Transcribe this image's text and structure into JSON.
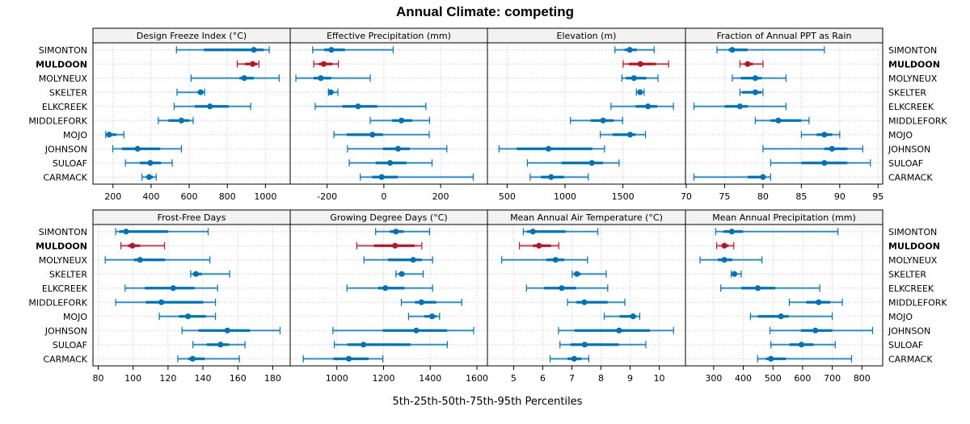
{
  "chart_data": {
    "type": "dot-interval",
    "title": "Annual Climate: competing",
    "xlabel": "5th-25th-50th-75th-95th Percentiles",
    "ylabel": "",
    "grid": true,
    "highlight_site": "MULDOON",
    "colors": {
      "default": "#0072B2",
      "highlight": "#B2182B",
      "grid": "#c8c8c8",
      "strip": "#f2f2f2"
    },
    "sites": [
      "SIMONTON",
      "MULDOON",
      "MOLYNEUX",
      "SKELTER",
      "ELKCREEK",
      "MIDDLEFORK",
      "MOJO",
      "JOHNSON",
      "SULOAF",
      "CARMACK"
    ],
    "percentile_keys": [
      "p5",
      "p25",
      "p50",
      "p75",
      "p95"
    ],
    "panels": [
      {
        "name": "Design Freeze Index (°C)",
        "xlim": [
          95,
          1130
        ],
        "ticks": [
          200,
          400,
          600,
          800,
          1000
        ],
        "values": [
          [
            533,
            677,
            939,
            991,
            1020
          ],
          [
            852,
            892,
            933,
            956,
            966
          ],
          [
            610,
            864,
            889,
            939,
            1072
          ],
          [
            536,
            644,
            660,
            672,
            681
          ],
          [
            521,
            630,
            709,
            807,
            923
          ],
          [
            438,
            491,
            559,
            601,
            621
          ],
          [
            162,
            173,
            180,
            218,
            257
          ],
          [
            199,
            247,
            329,
            448,
            559
          ],
          [
            265,
            342,
            396,
            452,
            511
          ],
          [
            352,
            374,
            390,
            410,
            427
          ]
        ]
      },
      {
        "name": "Effective Precipitation (mm)",
        "xlim": [
          -330,
          365
        ],
        "ticks": [
          -200,
          0,
          200
        ],
        "values": [
          [
            -251,
            -210,
            -185,
            -137,
            33
          ],
          [
            -247,
            -229,
            -212,
            -181,
            -160
          ],
          [
            -310,
            -248,
            -222,
            -185,
            -48
          ],
          [
            -195,
            -192,
            -187,
            -181,
            -162
          ],
          [
            -242,
            -146,
            -91,
            -23,
            148
          ],
          [
            -48,
            29,
            62,
            100,
            161
          ],
          [
            -176,
            -131,
            -40,
            -3,
            160
          ],
          [
            -128,
            -3,
            50,
            92,
            222
          ],
          [
            -122,
            -29,
            22,
            80,
            170
          ],
          [
            -83,
            -41,
            -8,
            49,
            315
          ]
        ]
      },
      {
        "name": "Elevation (m)",
        "xlim": [
          330,
          2040
        ],
        "ticks": [
          500,
          1000,
          1500
        ],
        "values": [
          [
            1431,
            1515,
            1559,
            1620,
            1770
          ],
          [
            1502,
            1551,
            1651,
            1785,
            1894
          ],
          [
            1490,
            1527,
            1595,
            1702,
            1803
          ],
          [
            1616,
            1632,
            1648,
            1667,
            1683
          ],
          [
            1397,
            1609,
            1716,
            1796,
            1936
          ],
          [
            1047,
            1222,
            1329,
            1420,
            1497
          ],
          [
            1305,
            1410,
            1562,
            1609,
            1695
          ],
          [
            430,
            582,
            857,
            1236,
            1341
          ],
          [
            675,
            968,
            1232,
            1329,
            1467
          ],
          [
            699,
            792,
            879,
            991,
            1201
          ]
        ]
      },
      {
        "name": "Fraction of Annual PPT as Rain",
        "xlim": [
          69.9,
          95.6
        ],
        "ticks": [
          70,
          75,
          80,
          85,
          90,
          95
        ],
        "values": [
          [
            74,
            75.5,
            76,
            78,
            88
          ],
          [
            77,
            77.6,
            78,
            78.7,
            80
          ],
          [
            76,
            77.1,
            79,
            79.8,
            83
          ],
          [
            77,
            77.3,
            79,
            79.8,
            80
          ],
          [
            71,
            75,
            77,
            78,
            83
          ],
          [
            79,
            81,
            82,
            85,
            86
          ],
          [
            85,
            87,
            88,
            89,
            90
          ],
          [
            80,
            88,
            89,
            91,
            93
          ],
          [
            81,
            85,
            88,
            91,
            94
          ],
          [
            71,
            78,
            80,
            80.1,
            81
          ]
        ]
      },
      {
        "name": "Frost-Free Days",
        "xlim": [
          77,
          190
        ],
        "ticks": [
          80,
          100,
          120,
          140,
          160,
          180
        ],
        "values": [
          [
            90,
            92,
            96,
            120,
            143
          ],
          [
            93,
            97,
            99.6,
            104,
            118
          ],
          [
            84,
            100.5,
            104,
            118.4,
            144
          ],
          [
            133,
            134.4,
            136,
            139.4,
            155.3
          ],
          [
            95.4,
            106.7,
            123,
            135.2,
            148.4
          ],
          [
            90,
            107.2,
            116.2,
            140.2,
            147.2
          ],
          [
            115,
            126.2,
            131.5,
            141.7,
            147.2
          ],
          [
            128,
            137.5,
            154,
            167,
            184.2
          ],
          [
            134.3,
            142.2,
            150.1,
            155,
            164.1
          ],
          [
            125.6,
            131.6,
            134.1,
            141,
            160.9
          ]
        ]
      },
      {
        "name": "Growing Degree Days (°C)",
        "xlim": [
          800,
          1645
        ],
        "ticks": [
          1000,
          1200,
          1400,
          1600
        ],
        "values": [
          [
            1166,
            1227,
            1253,
            1286,
            1397
          ],
          [
            1085,
            1159,
            1249,
            1333,
            1364
          ],
          [
            1116,
            1219,
            1327,
            1364,
            1410
          ],
          [
            1253,
            1265,
            1278,
            1290,
            1370
          ],
          [
            1043,
            1176,
            1208,
            1290,
            1410
          ],
          [
            1276,
            1335,
            1362,
            1426,
            1535
          ],
          [
            1307,
            1375,
            1408,
            1426,
            1440
          ],
          [
            983,
            1197,
            1340,
            1472,
            1586
          ],
          [
            989,
            1045,
            1114,
            1315,
            1473
          ],
          [
            856,
            985,
            1051,
            1136,
            1197
          ]
        ]
      },
      {
        "name": "Mean Annual Air Temperature (°C)",
        "xlim": [
          4.1,
          10.9
        ],
        "ticks": [
          5,
          6,
          7,
          8,
          9,
          10
        ],
        "values": [
          [
            5.33,
            5.46,
            5.66,
            6.78,
            7.89
          ],
          [
            5.2,
            5.66,
            5.87,
            6.28,
            6.55
          ],
          [
            4.59,
            6.12,
            6.44,
            6.74,
            7.54
          ],
          [
            7.01,
            7.09,
            7.17,
            7.31,
            8.18
          ],
          [
            5.44,
            6.05,
            6.65,
            7.15,
            8.23
          ],
          [
            6.85,
            7.15,
            7.43,
            8.23,
            8.82
          ],
          [
            8.11,
            8.64,
            9.1,
            9.21,
            9.33
          ],
          [
            6.54,
            7.09,
            8.62,
            9.68,
            10.49
          ],
          [
            6.59,
            6.95,
            7.44,
            8.61,
            9.54
          ],
          [
            6.25,
            6.85,
            7.08,
            7.33,
            7.58
          ]
        ]
      },
      {
        "name": "Mean Annual Precipitation (mm)",
        "xlim": [
          205,
          870
        ],
        "ticks": [
          300,
          400,
          500,
          600,
          700,
          800
        ],
        "values": [
          [
            307,
            333,
            361,
            399,
            719
          ],
          [
            310,
            327,
            336,
            350,
            368
          ],
          [
            254,
            314,
            336,
            363,
            463
          ],
          [
            359,
            364,
            370,
            377,
            393
          ],
          [
            324,
            393,
            449,
            508,
            658
          ],
          [
            555,
            612,
            654,
            693,
            734
          ],
          [
            424,
            449,
            527,
            553,
            700
          ],
          [
            490,
            594,
            643,
            700,
            836
          ],
          [
            493,
            556,
            596,
            637,
            710
          ],
          [
            448,
            476,
            493,
            544,
            765
          ]
        ]
      }
    ]
  }
}
